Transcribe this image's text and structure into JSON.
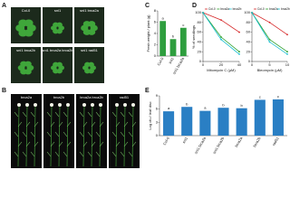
{
  "panel_labels": [
    "A",
    "B",
    "C",
    "D",
    "E"
  ],
  "panel_a": {
    "labels": [
      "Col-0",
      "sni1",
      "sni1 brca2a",
      "sni1 brca2b",
      "sni1 brca2a brca2b",
      "sni1 rad51"
    ]
  },
  "panel_b": {
    "labels": [
      "brca2a",
      "brca2b",
      "brca2a brca2b",
      "rad51"
    ]
  },
  "chart_data": [
    {
      "type": "bar",
      "ylabel": "Fresh weight / plant (g)",
      "categories": [
        "Col-0",
        "sni1",
        "sni1 brca2a"
      ],
      "values": [
        6.2,
        3.0,
        5.0
      ],
      "letters": [
        "a",
        "b",
        "c"
      ],
      "color": "#2e9e3e",
      "ylim": [
        0,
        8
      ],
      "yticks": [
        0,
        2,
        4,
        6,
        8
      ]
    },
    {
      "type": "line",
      "ylabel": "% of seedlings",
      "xlabel": "Mitomycin C (μM)",
      "x": [
        0,
        20,
        40
      ],
      "xlim": [
        0,
        40
      ],
      "xticks": [
        0,
        20,
        40
      ],
      "ylim": [
        0,
        100
      ],
      "yticks": [
        0,
        20,
        40,
        60,
        80,
        100
      ],
      "series": [
        {
          "name": "Col-0",
          "color": "#d62728",
          "values": [
            100,
            85,
            60
          ]
        },
        {
          "name": "brca2a",
          "color": "#2ca02c",
          "values": [
            100,
            50,
            20
          ]
        },
        {
          "name": "brca2b",
          "color": "#17becf",
          "values": [
            100,
            45,
            15
          ]
        }
      ]
    },
    {
      "type": "line",
      "xlabel": "Bleomycin (μM)",
      "x": [
        0,
        5,
        10
      ],
      "xlim": [
        0,
        10
      ],
      "xticks": [
        0,
        5,
        10
      ],
      "ylim": [
        0,
        100
      ],
      "yticks": [
        0,
        20,
        40,
        60,
        80,
        100
      ],
      "series": [
        {
          "name": "Col-0",
          "color": "#d62728",
          "values": [
            100,
            80,
            55
          ]
        },
        {
          "name": "brca2a",
          "color": "#2ca02c",
          "values": [
            100,
            45,
            20
          ]
        },
        {
          "name": "brca2b",
          "color": "#17becf",
          "values": [
            100,
            40,
            15
          ]
        }
      ]
    },
    {
      "type": "bar",
      "ylabel": "Log cfu / leaf disc",
      "categories": [
        "Col-0",
        "sni1",
        "sni1 brca2a",
        "sni1 brca2b",
        "brca2a",
        "brca2b",
        "rad51"
      ],
      "values": [
        5.5,
        6.5,
        5.6,
        6.3,
        6.2,
        8.1,
        8.2
      ],
      "letters": [
        "a",
        "b",
        "a",
        "b",
        "b",
        "c",
        "c"
      ],
      "color": "#2a7fc4",
      "ylim": [
        0,
        9
      ],
      "yticks": [
        0,
        3,
        6,
        9
      ]
    }
  ]
}
